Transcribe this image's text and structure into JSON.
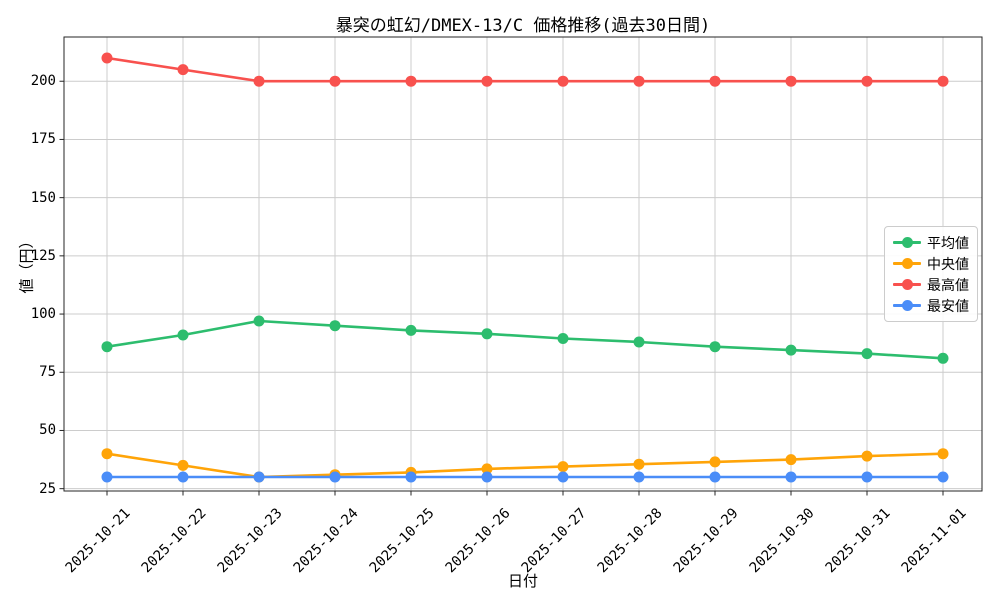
{
  "figure": {
    "background": "#ffffff",
    "grid_color": "#cccccc",
    "spine_color": "#262626",
    "text_color": "#000000"
  },
  "chart_data": {
    "type": "line",
    "title": "暴突の虹幻/DMEX-13/C 価格推移(過去30日間)",
    "xlabel": "日付",
    "ylabel": "値（円）",
    "categories": [
      "2025-10-21",
      "2025-10-22",
      "2025-10-23",
      "2025-10-24",
      "2025-10-25",
      "2025-10-26",
      "2025-10-27",
      "2025-10-28",
      "2025-10-29",
      "2025-10-30",
      "2025-10-31",
      "2025-11-01"
    ],
    "yticks": [
      25,
      50,
      75,
      100,
      125,
      150,
      175,
      200
    ],
    "ylim": [
      24,
      219
    ],
    "grid": true,
    "legend_position": "center right",
    "series": [
      {
        "name": "平均値",
        "key": "average",
        "color": "#2dbd6e",
        "values": [
          86,
          91,
          97,
          95,
          93,
          91.5,
          89.5,
          88,
          86,
          84.5,
          83,
          81
        ]
      },
      {
        "name": "中央値",
        "key": "median",
        "color": "#ffa408",
        "values": [
          40,
          35,
          30,
          31,
          32,
          33.5,
          34.5,
          35.5,
          36.5,
          37.5,
          39,
          40
        ]
      },
      {
        "name": "最高値",
        "key": "highest",
        "color": "#f8514e",
        "values": [
          210,
          205,
          200,
          200,
          200,
          200,
          200,
          200,
          200,
          200,
          200,
          200
        ]
      },
      {
        "name": "最安値",
        "key": "lowest",
        "color": "#4a8df8",
        "values": [
          30,
          30,
          30,
          30,
          30,
          30,
          30,
          30,
          30,
          30,
          30,
          30
        ]
      }
    ]
  }
}
